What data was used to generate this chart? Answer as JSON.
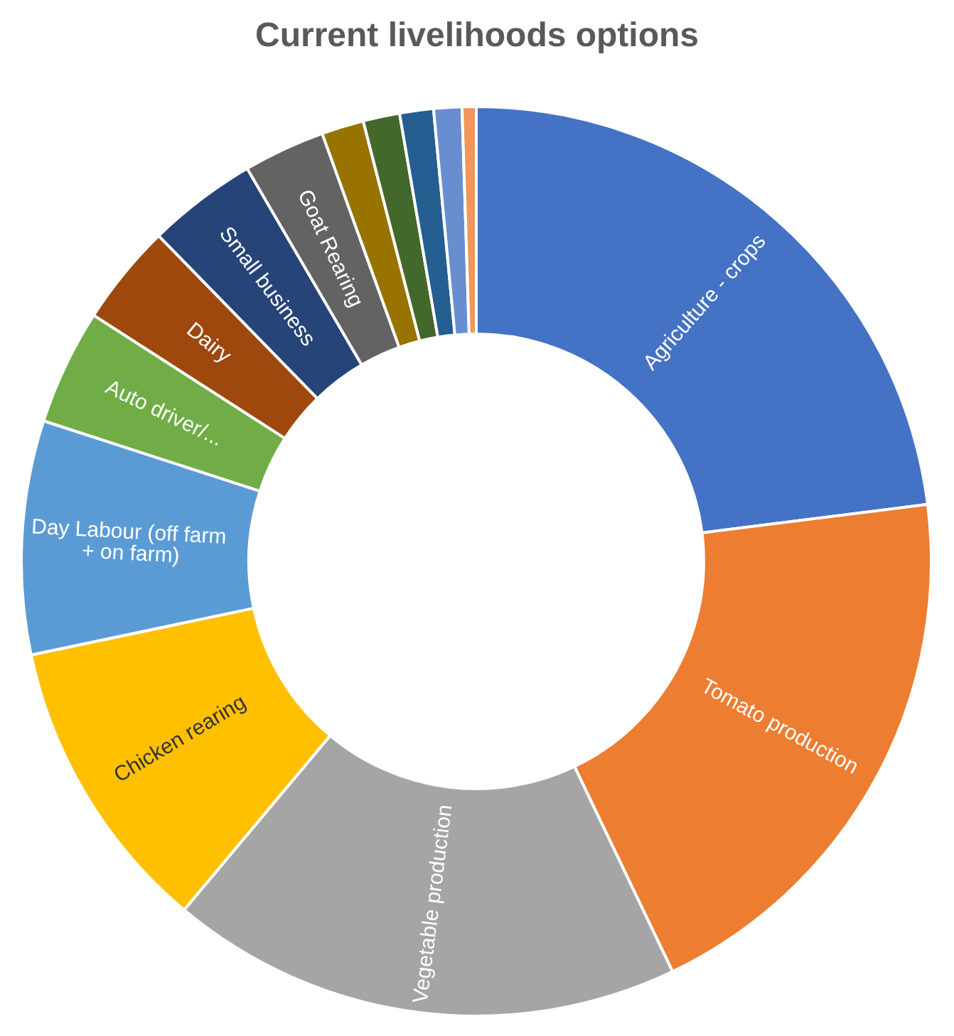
{
  "chart_data": {
    "type": "donut",
    "title": "Current livelihoods options",
    "categories": [
      "Agriculture - crops",
      "Tomato production",
      "Vegetable production",
      "Chicken rearing",
      "Day Labour (off farm + on farm)",
      "Auto driver/...",
      "Dairy",
      "Small business",
      "Goat Rearing",
      null,
      null,
      null,
      null,
      null
    ],
    "values": [
      23,
      19.9,
      18.2,
      10.6,
      8.3,
      4.1,
      3.6,
      3.9,
      2.9,
      1.5,
      1.3,
      1.2,
      1.0,
      0.5
    ],
    "colors": [
      "#4472c4",
      "#ed7d31",
      "#a5a5a5",
      "#ffc000",
      "#5b9bd5",
      "#70ad47",
      "#9e480e",
      "#264478",
      "#636363",
      "#997300",
      "#43682b",
      "#255e91",
      "#698ed0",
      "#f1975a"
    ],
    "legend": false
  }
}
